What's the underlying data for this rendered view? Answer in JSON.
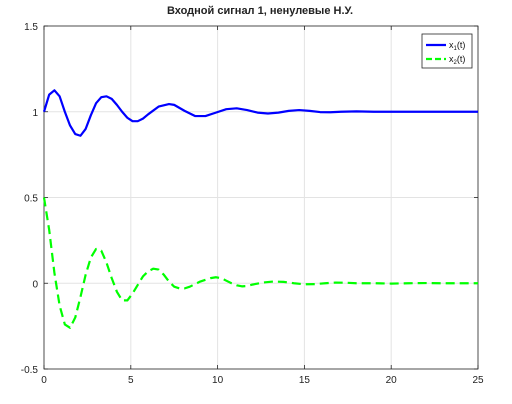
{
  "chart_data": {
    "type": "line",
    "title": "Входной сигнал 1, ненулевые Н.У.",
    "xlabel": "",
    "ylabel": "",
    "xlim": [
      0,
      25
    ],
    "ylim": [
      -0.5,
      1.5
    ],
    "x_ticks": [
      0,
      5,
      10,
      15,
      20,
      25
    ],
    "x_tick_labels": [
      "0",
      "5",
      "10",
      "15",
      "20",
      "25"
    ],
    "y_ticks": [
      -0.5,
      0,
      0.5,
      1,
      1.5
    ],
    "y_tick_labels": [
      "-0.5",
      "0",
      "0.5",
      "1",
      "1.5"
    ],
    "grid": true,
    "legend_position": "top-right",
    "series": [
      {
        "name": "x1(t)",
        "legend_base": "x",
        "legend_sub": "1",
        "legend_suffix": "(t)",
        "color": "#0000ff",
        "style": "solid",
        "x": [
          0,
          0.3,
          0.6,
          0.9,
          1.2,
          1.5,
          1.8,
          2.1,
          2.4,
          2.7,
          3.0,
          3.3,
          3.6,
          3.9,
          4.2,
          4.5,
          4.8,
          5.1,
          5.4,
          5.7,
          6.0,
          6.6,
          7.2,
          7.5,
          8.1,
          8.7,
          9.3,
          9.9,
          10.5,
          11.1,
          11.7,
          12.3,
          12.9,
          13.5,
          14.1,
          14.7,
          15.3,
          15.9,
          16.5,
          17.1,
          18,
          19,
          20,
          21,
          22,
          23,
          24,
          25
        ],
        "values": [
          1.0,
          1.1,
          1.125,
          1.09,
          1.0,
          0.92,
          0.87,
          0.86,
          0.9,
          0.98,
          1.05,
          1.085,
          1.09,
          1.075,
          1.04,
          1.0,
          0.965,
          0.945,
          0.945,
          0.96,
          0.985,
          1.03,
          1.045,
          1.04,
          1.005,
          0.975,
          0.975,
          0.995,
          1.015,
          1.02,
          1.01,
          0.995,
          0.99,
          0.995,
          1.005,
          1.01,
          1.005,
          0.998,
          0.997,
          1.0,
          1.002,
          1.0,
          1.0,
          1.0,
          1.0,
          1.0,
          1.0,
          1.0
        ]
      },
      {
        "name": "x2(t)",
        "legend_base": "x",
        "legend_sub": "2",
        "legend_suffix": "(t)",
        "color": "#00ff00",
        "style": "dashed",
        "x": [
          0,
          0.3,
          0.6,
          0.9,
          1.2,
          1.5,
          1.8,
          2.1,
          2.4,
          2.7,
          3.0,
          3.3,
          3.6,
          3.9,
          4.2,
          4.5,
          4.8,
          5.1,
          5.4,
          5.7,
          6.0,
          6.3,
          6.6,
          6.9,
          7.2,
          7.5,
          7.8,
          8.1,
          8.4,
          8.7,
          9.0,
          9.3,
          9.6,
          9.9,
          10.2,
          10.5,
          10.8,
          11.1,
          11.4,
          11.7,
          12.0,
          12.6,
          13.2,
          13.8,
          14.4,
          15.0,
          15.6,
          16.2,
          16.8,
          17.4,
          18,
          19,
          20,
          21,
          22,
          23,
          24,
          25
        ],
        "values": [
          0.5,
          0.31,
          0.06,
          -0.13,
          -0.24,
          -0.26,
          -0.2,
          -0.08,
          0.05,
          0.15,
          0.2,
          0.19,
          0.12,
          0.03,
          -0.05,
          -0.1,
          -0.1,
          -0.06,
          -0.01,
          0.04,
          0.07,
          0.085,
          0.08,
          0.05,
          0.01,
          -0.02,
          -0.03,
          -0.03,
          -0.02,
          -0.005,
          0.01,
          0.02,
          0.03,
          0.035,
          0.03,
          0.015,
          0.0,
          -0.012,
          -0.018,
          -0.016,
          -0.008,
          0.004,
          0.01,
          0.008,
          0.0,
          -0.006,
          -0.005,
          0.0,
          0.004,
          0.003,
          0.0,
          0.0,
          -0.002,
          0.0,
          0.001,
          0.0,
          0.0,
          0.0
        ]
      }
    ]
  }
}
